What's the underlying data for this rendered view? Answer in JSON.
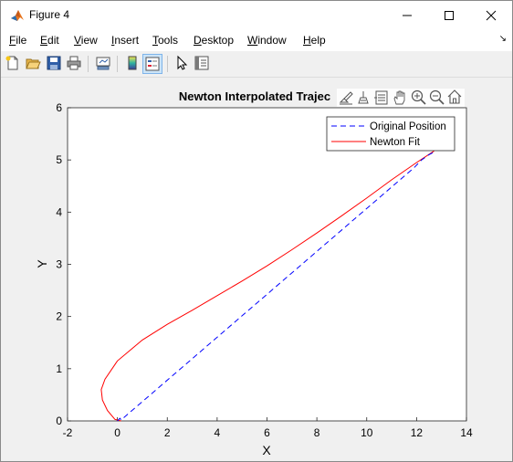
{
  "window": {
    "title": "Figure 4"
  },
  "menu": {
    "items": [
      {
        "label": "File",
        "u": "F",
        "rest": "ile"
      },
      {
        "label": "Edit",
        "u": "E",
        "rest": "dit"
      },
      {
        "label": "View",
        "u": "V",
        "rest": "iew"
      },
      {
        "label": "Insert",
        "u": "I",
        "rest": "nsert"
      },
      {
        "label": "Tools",
        "u": "T",
        "rest": "ools"
      },
      {
        "label": "Desktop",
        "u": "D",
        "rest": "esktop"
      },
      {
        "label": "Window",
        "u": "W",
        "rest": "indow"
      },
      {
        "label": "Help",
        "u": "H",
        "rest": "elp"
      }
    ]
  },
  "toolbar": {
    "icons": [
      "new-figure-icon",
      "open-file-icon",
      "save-icon",
      "print-icon",
      "link-plot-icon",
      "insert-colorbar-icon",
      "insert-legend-icon",
      "edit-plot-icon",
      "property-inspector-icon"
    ]
  },
  "axes_toolbar": {
    "icons": [
      "brush-icon",
      "data-tips-icon",
      "rotate-icon",
      "pan-icon",
      "zoom-in-icon",
      "zoom-out-icon",
      "home-icon"
    ]
  },
  "chart_data": {
    "type": "line",
    "title": "Newton Interpolated Trajec",
    "xlabel": "X",
    "ylabel": "Y",
    "xlim": [
      -2,
      14
    ],
    "ylim": [
      0,
      6
    ],
    "xticks": [
      "-2",
      "0",
      "2",
      "4",
      "6",
      "8",
      "10",
      "12",
      "14"
    ],
    "yticks": [
      "0",
      "1",
      "2",
      "3",
      "4",
      "5",
      "6"
    ],
    "grid": false,
    "legend_placement": "top-right",
    "series": [
      {
        "name": "Original Position",
        "color": "#0000ff",
        "style": "dashed",
        "x": [
          0.0,
          0.1,
          0.15,
          11.9,
          12.2,
          12.5,
          12.7
        ],
        "y": [
          0.0,
          0.05,
          0.02,
          4.85,
          5.0,
          5.1,
          5.15
        ]
      },
      {
        "name": "Newton Fit",
        "color": "#ff0000",
        "style": "solid",
        "x": [
          0.15,
          -0.1,
          -0.4,
          -0.6,
          -0.65,
          -0.5,
          0.0,
          1.0,
          2.0,
          3.0,
          4.0,
          5.0,
          6.0,
          7.0,
          8.0,
          9.0,
          10.0,
          11.0,
          12.0,
          12.7
        ],
        "y": [
          0.0,
          0.03,
          0.2,
          0.4,
          0.6,
          0.8,
          1.15,
          1.55,
          1.85,
          2.12,
          2.4,
          2.68,
          2.97,
          3.28,
          3.6,
          3.93,
          4.27,
          4.62,
          4.95,
          5.17
        ]
      }
    ]
  }
}
